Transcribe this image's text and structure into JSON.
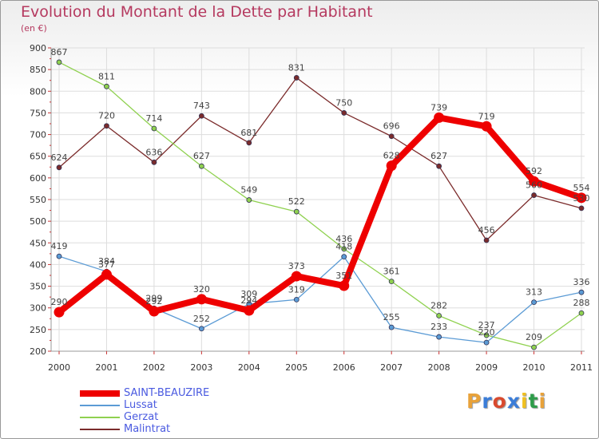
{
  "header": {
    "title": "Evolution du Montant de la Dette par Habitant",
    "subtitle": "(en €)"
  },
  "logo": {
    "text": "Proxiti",
    "colors": [
      "#e8a23a",
      "#3b7dd8",
      "#d94a2e",
      "#3b7dd8",
      "#f0c020",
      "#2e9c4a",
      "#e8a23a"
    ]
  },
  "chart_data": {
    "type": "line",
    "title": "Evolution du Montant de la Dette par Habitant",
    "subtitle": "(en €)",
    "xlabel": "",
    "ylabel": "",
    "x": [
      "2000",
      "2001",
      "2002",
      "2003",
      "2004",
      "2005",
      "2006",
      "2007",
      "2008",
      "2009",
      "2010",
      "2011"
    ],
    "ylim": [
      200,
      900
    ],
    "yticks": [
      200,
      250,
      300,
      350,
      400,
      450,
      500,
      550,
      600,
      650,
      700,
      750,
      800,
      850,
      900
    ],
    "grid": true,
    "legend": "bottom-left",
    "series": [
      {
        "name": "SAINT-BEAUZIRE",
        "color": "#ee0000",
        "values": [
          290,
          377,
          292,
          320,
          294,
          373,
          351,
          628,
          739,
          719,
          592,
          554
        ]
      },
      {
        "name": "Lussat",
        "color": "#5b9bd5",
        "values": [
          419,
          384,
          299,
          252,
          309,
          319,
          418,
          255,
          233,
          220,
          313,
          336
        ]
      },
      {
        "name": "Gerzat",
        "color": "#8fd14f",
        "values": [
          867,
          811,
          714,
          627,
          549,
          522,
          436,
          361,
          282,
          237,
          209,
          288
        ]
      },
      {
        "name": "Malintrat",
        "color": "#7b2b2b",
        "values": [
          624,
          720,
          636,
          743,
          681,
          831,
          750,
          696,
          627,
          456,
          560,
          530
        ]
      }
    ]
  }
}
